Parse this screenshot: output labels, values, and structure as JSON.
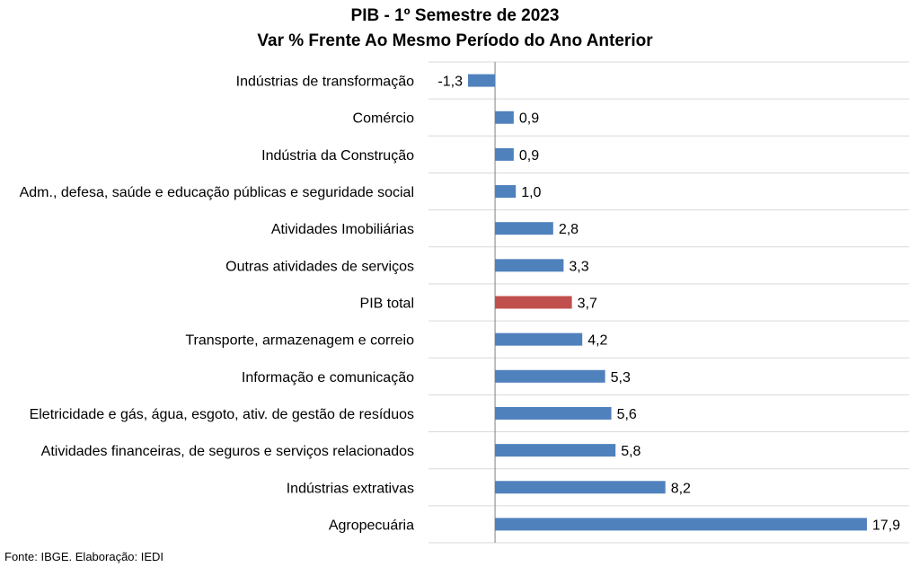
{
  "chart_data": {
    "type": "bar",
    "orientation": "horizontal",
    "title": "PIB - 1º Semestre de 2023",
    "subtitle": "Var % Frente Ao Mesmo Período do Ano Anterior",
    "categories": [
      "Indústrias de transformação",
      "Comércio",
      "Indústria da Construção",
      "Adm., defesa, saúde e educação públicas e seguridade social",
      "Atividades Imobiliárias",
      "Outras atividades de serviços",
      "PIB total",
      "Transporte, armazenagem e correio",
      "Informação e comunicação",
      "Eletricidade e gás, água, esgoto, ativ. de gestão de resíduos",
      "Atividades financeiras, de seguros e serviços relacionados",
      "Indústrias extrativas",
      "Agropecuária"
    ],
    "values": [
      -1.3,
      0.9,
      0.9,
      1.0,
      2.8,
      3.3,
      3.7,
      4.2,
      5.3,
      5.6,
      5.8,
      8.2,
      17.9
    ],
    "value_labels": [
      "-1,3",
      "0,9",
      "0,9",
      "1,0",
      "2,8",
      "3,3",
      "3,7",
      "4,2",
      "5,3",
      "5,6",
      "5,8",
      "8,2",
      "17,9"
    ],
    "xlim": [
      -1.3,
      17.9
    ],
    "grid": true,
    "colors": {
      "default": "#4F81BD",
      "highlight": "#C0504D"
    },
    "highlight_category": "PIB total"
  },
  "source": "Fonte: IBGE. Elaboração: IEDI"
}
